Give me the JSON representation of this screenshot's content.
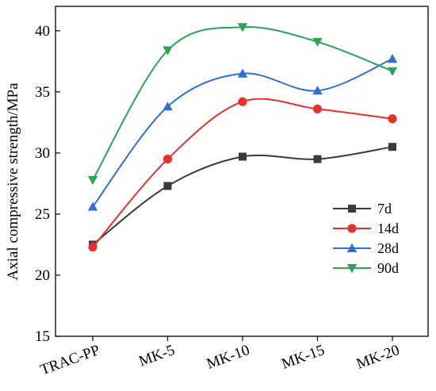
{
  "chart_data": {
    "type": "line",
    "ylabel": "Axial compressive strength/MPa",
    "xlabel": "",
    "ylim": [
      15,
      42
    ],
    "yticks": [
      15,
      20,
      25,
      30,
      35,
      40
    ],
    "categories": [
      "TRAC-PP",
      "MK-5",
      "MK-10",
      "MK-15",
      "MK-20"
    ],
    "legend_position": "right",
    "series": [
      {
        "name": "7d",
        "marker": "square",
        "color": "#3a3a3a",
        "values": [
          22.5,
          27.3,
          29.7,
          29.5,
          30.5
        ]
      },
      {
        "name": "14d",
        "marker": "circle",
        "color": "#e8302e",
        "values": [
          22.3,
          29.5,
          34.2,
          33.6,
          32.8
        ]
      },
      {
        "name": "28d",
        "marker": "triangle-up",
        "color": "#2f6fd8",
        "values": [
          25.6,
          33.8,
          36.5,
          35.1,
          37.7
        ]
      },
      {
        "name": "90d",
        "marker": "triangle-down",
        "color": "#2aa455",
        "values": [
          27.8,
          38.4,
          40.3,
          39.1,
          36.7
        ]
      }
    ]
  }
}
